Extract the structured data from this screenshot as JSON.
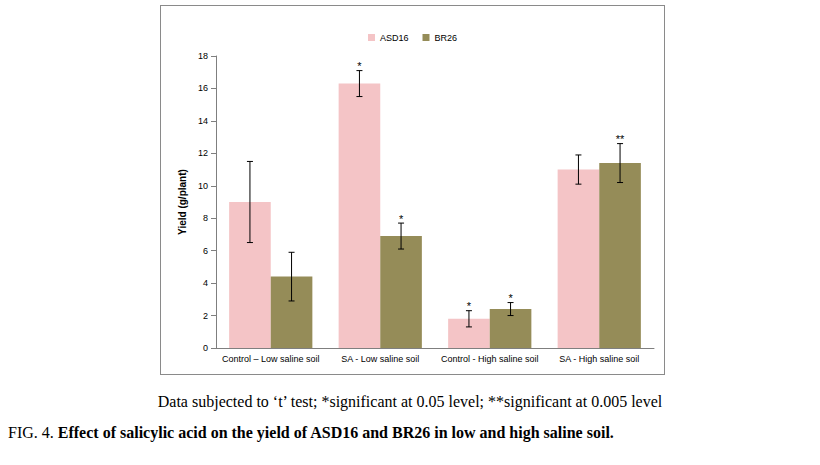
{
  "chart_data": {
    "type": "bar",
    "categories": [
      "Control – Low saline soil",
      "SA - Low saline soil",
      "Control - High saline soil",
      "SA - High saline soil"
    ],
    "series": [
      {
        "name": "ASD16",
        "color": "#f4c4c6",
        "values": [
          9.0,
          16.3,
          1.8,
          11.0
        ],
        "errors": [
          2.5,
          0.8,
          0.5,
          0.9
        ],
        "annotations": [
          null,
          "*",
          "*",
          null
        ]
      },
      {
        "name": "BR26",
        "color": "#958c58",
        "values": [
          4.4,
          6.9,
          2.4,
          11.4
        ],
        "errors": [
          1.5,
          0.8,
          0.4,
          1.2
        ],
        "annotations": [
          null,
          "*",
          "*",
          "**"
        ]
      }
    ],
    "y_label": "Yield (g/plant)",
    "ylim": [
      0,
      18
    ],
    "yticks": [
      0,
      2,
      4,
      6,
      8,
      10,
      12,
      14,
      16,
      18
    ],
    "grid": false,
    "legend": "top",
    "note": "Data subjected to ‘t’ test; *significant at 0.05 level; **significant at 0.005 level",
    "figure_label": "FIG. 4.",
    "title": "Effect of salicylic acid on the yield of ASD16 and BR26 in low and high saline soil."
  }
}
